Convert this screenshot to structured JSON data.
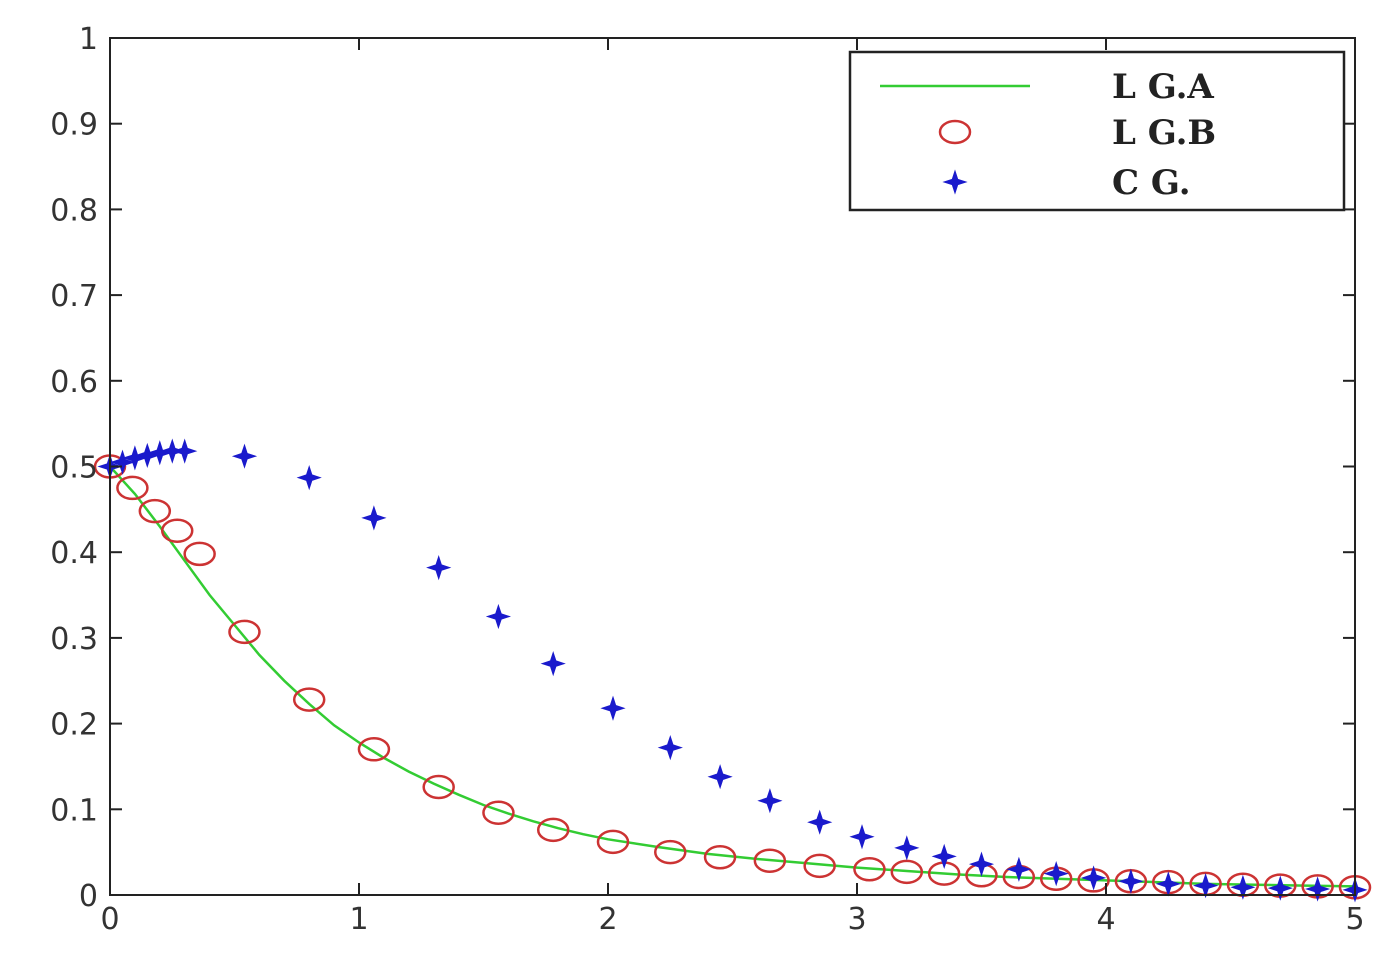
{
  "chart_data": {
    "type": "line",
    "title": "",
    "xlabel": "",
    "ylabel": "",
    "xlim": [
      0,
      5
    ],
    "ylim": [
      0,
      1
    ],
    "x_ticks": [
      "0",
      "1",
      "2",
      "3",
      "4",
      "5"
    ],
    "y_ticks": [
      "0",
      "0.1",
      "0.2",
      "0.3",
      "0.4",
      "0.5",
      "0.6",
      "0.7",
      "0.8",
      "0.9",
      "1"
    ],
    "grid": false,
    "legend_position": "top-right",
    "series": [
      {
        "name": "L G.A",
        "style": "line",
        "color": "#33cc33",
        "x": [
          0,
          0.1,
          0.2,
          0.3,
          0.4,
          0.5,
          0.6,
          0.7,
          0.8,
          0.9,
          1.0,
          1.1,
          1.2,
          1.3,
          1.4,
          1.5,
          1.6,
          1.7,
          1.8,
          1.9,
          2.0,
          2.2,
          2.4,
          2.6,
          2.8,
          3.0,
          3.2,
          3.4,
          3.6,
          3.8,
          4.0,
          4.2,
          4.4,
          4.6,
          4.8,
          5.0
        ],
        "y": [
          0.5,
          0.468,
          0.43,
          0.39,
          0.35,
          0.315,
          0.28,
          0.25,
          0.223,
          0.198,
          0.178,
          0.16,
          0.144,
          0.13,
          0.117,
          0.105,
          0.095,
          0.086,
          0.078,
          0.071,
          0.065,
          0.056,
          0.048,
          0.042,
          0.037,
          0.032,
          0.028,
          0.024,
          0.021,
          0.019,
          0.017,
          0.015,
          0.013,
          0.012,
          0.011,
          0.01
        ]
      },
      {
        "name": "L G.B",
        "style": "circle",
        "color": "#cc3333",
        "x": [
          0,
          0.09,
          0.18,
          0.27,
          0.36,
          0.54,
          0.8,
          1.06,
          1.32,
          1.56,
          1.78,
          2.02,
          2.25,
          2.45,
          2.65,
          2.85,
          3.05,
          3.2,
          3.35,
          3.5,
          3.65,
          3.8,
          3.95,
          4.1,
          4.25,
          4.4,
          4.55,
          4.7,
          4.85,
          5.0
        ],
        "y": [
          0.5,
          0.475,
          0.448,
          0.425,
          0.398,
          0.307,
          0.228,
          0.17,
          0.126,
          0.096,
          0.076,
          0.062,
          0.05,
          0.044,
          0.04,
          0.034,
          0.03,
          0.027,
          0.025,
          0.023,
          0.021,
          0.019,
          0.017,
          0.016,
          0.015,
          0.013,
          0.012,
          0.011,
          0.01,
          0.009
        ]
      },
      {
        "name": "C G.",
        "style": "star",
        "color": "#1a1acc",
        "x": [
          0,
          0.05,
          0.1,
          0.15,
          0.2,
          0.25,
          0.3,
          0.54,
          0.8,
          1.06,
          1.32,
          1.56,
          1.78,
          2.02,
          2.25,
          2.45,
          2.65,
          2.85,
          3.02,
          3.2,
          3.35,
          3.5,
          3.65,
          3.8,
          3.95,
          4.1,
          4.25,
          4.4,
          4.55,
          4.7,
          4.85,
          5.0
        ],
        "y": [
          0.5,
          0.505,
          0.51,
          0.513,
          0.516,
          0.518,
          0.518,
          0.512,
          0.487,
          0.44,
          0.382,
          0.325,
          0.27,
          0.218,
          0.172,
          0.138,
          0.11,
          0.085,
          0.068,
          0.055,
          0.045,
          0.036,
          0.03,
          0.025,
          0.02,
          0.016,
          0.013,
          0.011,
          0.009,
          0.008,
          0.007,
          0.006
        ]
      }
    ]
  }
}
